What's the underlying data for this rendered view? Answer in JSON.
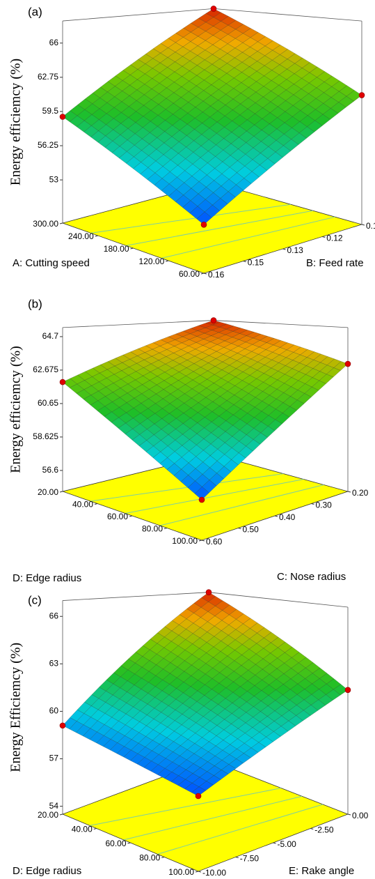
{
  "charts": [
    {
      "type": "surface",
      "label": "(a)",
      "zlabel": "Energy efficiemcy   (%)",
      "zlim": [
        48.9,
        68.1
      ],
      "zticks": [
        53,
        56.25,
        59.5,
        62.75,
        66
      ],
      "x": {
        "label": "A: Cutting speed",
        "lim": [
          60,
          300
        ],
        "ticks": [
          {
            "value": 300,
            "label": "300.00"
          },
          {
            "value": 240,
            "label": "240.00"
          },
          {
            "value": 180,
            "label": "180.00"
          },
          {
            "value": 120,
            "label": "120.00"
          },
          {
            "value": 60,
            "label": "60.00"
          }
        ]
      },
      "y": {
        "label": "B: Feed rate",
        "lim": [
          0.16,
          0.1
        ],
        "ticks": [
          {
            "value": 0.1,
            "label": "0.10"
          },
          {
            "value": 0.115,
            "label": "0.12"
          },
          {
            "value": 0.13,
            "label": "0.13"
          },
          {
            "value": 0.145,
            "label": "0.15"
          },
          {
            "value": 0.16,
            "label": "0.16"
          }
        ]
      },
      "z": [
        [
          53.0,
          61.1
        ],
        [
          59.0,
          68.1
        ]
      ]
    },
    {
      "type": "surface",
      "label": "(b)",
      "zlabel": "Energy efficiemcy   (%)",
      "zlim": [
        55.33,
        65.25
      ],
      "zticks": [
        56.6,
        58.625,
        60.65,
        62.675,
        64.7
      ],
      "x": {
        "label": "D: Edge radius",
        "lim": [
          100,
          20
        ],
        "ticks": [
          {
            "value": 20,
            "label": "20.00"
          },
          {
            "value": 40,
            "label": "40.00"
          },
          {
            "value": 60,
            "label": "60.00"
          },
          {
            "value": 80,
            "label": "80.00"
          },
          {
            "value": 100,
            "label": "100.00"
          }
        ]
      },
      "y": {
        "label": "C: Nose radius",
        "lim": [
          0.6,
          0.2
        ],
        "ticks": [
          {
            "value": 0.2,
            "label": "0.20"
          },
          {
            "value": 0.3,
            "label": "0.30"
          },
          {
            "value": 0.4,
            "label": "0.40"
          },
          {
            "value": 0.5,
            "label": "0.50"
          },
          {
            "value": 0.6,
            "label": "0.60"
          }
        ]
      },
      "z": [
        [
          57.65,
          63.05
        ],
        [
          61.95,
          65.25
        ]
      ]
    },
    {
      "type": "surface",
      "label": "(c)",
      "zlabel": "Energy Efficiemcy   (%)",
      "zlim": [
        53.5,
        67.0
      ],
      "zticks": [
        54,
        57,
        60,
        63,
        66
      ],
      "x": {
        "label": "D: Edge radius",
        "lim": [
          100,
          20
        ],
        "ticks": [
          {
            "value": 20,
            "label": "20.00"
          },
          {
            "value": 40,
            "label": "40.00"
          },
          {
            "value": 60,
            "label": "60.00"
          },
          {
            "value": 80,
            "label": "80.00"
          },
          {
            "value": 100,
            "label": "100.00"
          }
        ]
      },
      "y": {
        "label": "E: Rake angle",
        "lim": [
          -10,
          0
        ],
        "ticks": [
          {
            "value": 0,
            "label": "0.00"
          },
          {
            "value": -2.5,
            "label": "-2.50"
          },
          {
            "value": -5,
            "label": "-5.00"
          },
          {
            "value": -7.5,
            "label": "-7.50"
          },
          {
            "value": -10,
            "label": "-10.00"
          }
        ]
      },
      "z": [
        [
          58.0,
          61.6
        ],
        [
          59.1,
          67.0
        ]
      ]
    }
  ]
}
